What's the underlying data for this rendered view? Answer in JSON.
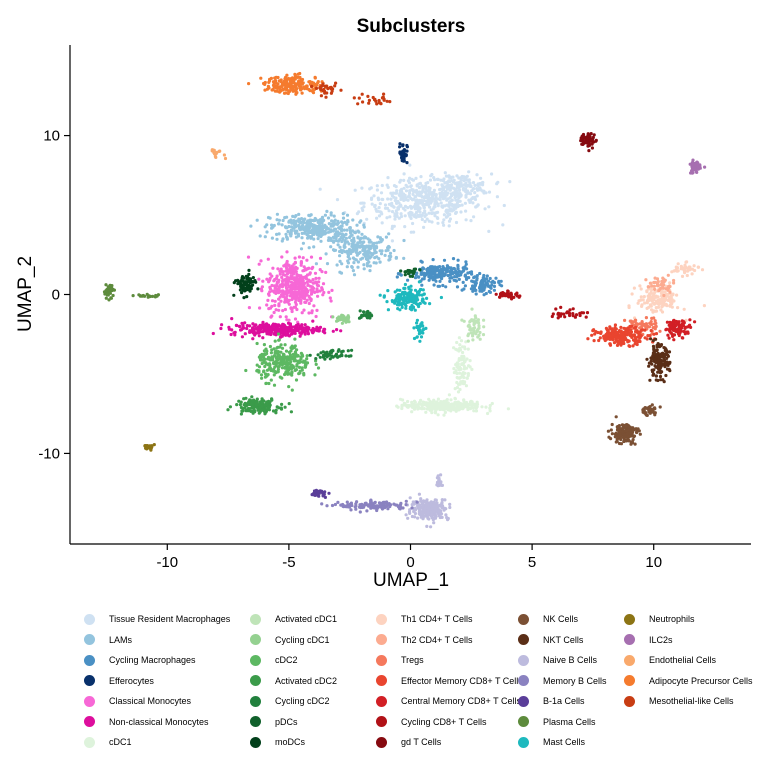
{
  "chart_data": {
    "type": "scatter",
    "title": "Subclusters",
    "xlabel": "UMAP_1",
    "ylabel": "UMAP_2",
    "xlim": [
      -14,
      14
    ],
    "ylim": [
      -15.7,
      15.7
    ],
    "xticks": [
      -10,
      -5,
      0,
      5,
      10
    ],
    "yticks": [
      -10,
      0,
      10
    ],
    "xtick_labels": [
      "-10",
      "-5",
      "0",
      "5",
      "10"
    ],
    "ytick_labels": [
      "-10",
      "0",
      "10"
    ],
    "grid": false,
    "legend_position": "bottom",
    "series": [
      {
        "name": "Tissue Resident Macrophages",
        "color": "#cfe1f2",
        "clusters": [
          {
            "cx": 0.5,
            "cy": 5.8,
            "sx": 2.2,
            "sy": 1.3,
            "n": 450
          },
          {
            "cx": 2.0,
            "cy": 6.8,
            "sx": 1.2,
            "sy": 0.7,
            "n": 150
          }
        ]
      },
      {
        "name": "LAMs",
        "color": "#93c4de",
        "clusters": [
          {
            "cx": -4.0,
            "cy": 4.2,
            "sx": 1.6,
            "sy": 0.8,
            "n": 320
          },
          {
            "cx": -2.0,
            "cy": 2.8,
            "sx": 1.2,
            "sy": 0.9,
            "n": 220
          }
        ]
      },
      {
        "name": "Cycling Macrophages",
        "color": "#4a90c4",
        "clusters": [
          {
            "cx": 1.2,
            "cy": 1.3,
            "sx": 1.2,
            "sy": 0.6,
            "n": 200
          },
          {
            "cx": 3.0,
            "cy": 0.6,
            "sx": 0.6,
            "sy": 0.5,
            "n": 80
          }
        ]
      },
      {
        "name": "Efferocytes",
        "color": "#08306b",
        "clusters": [
          {
            "cx": -0.3,
            "cy": 8.9,
            "sx": 0.15,
            "sy": 0.6,
            "n": 40
          }
        ]
      },
      {
        "name": "Classical Monocytes",
        "color": "#f768d6",
        "clusters": [
          {
            "cx": -4.8,
            "cy": 0.5,
            "sx": 1.0,
            "sy": 1.6,
            "n": 420
          }
        ]
      },
      {
        "name": "Non-classical Monocytes",
        "color": "#dd0e9d",
        "clusters": [
          {
            "cx": -5.5,
            "cy": -2.2,
            "sx": 1.7,
            "sy": 0.35,
            "n": 280
          }
        ]
      },
      {
        "name": "cDC1",
        "color": "#def3dc",
        "clusters": [
          {
            "cx": 1.3,
            "cy": -7.0,
            "sx": 1.5,
            "sy": 0.35,
            "n": 300
          },
          {
            "cx": 2.1,
            "cy": -4.5,
            "sx": 0.3,
            "sy": 1.5,
            "n": 90
          }
        ]
      },
      {
        "name": "Activated cDC1",
        "color": "#bfe4b8",
        "clusters": [
          {
            "cx": 2.6,
            "cy": -2.0,
            "sx": 0.3,
            "sy": 0.8,
            "n": 50
          }
        ]
      },
      {
        "name": "Cycling cDC1",
        "color": "#94d190",
        "clusters": [
          {
            "cx": -2.8,
            "cy": -1.5,
            "sx": 0.3,
            "sy": 0.3,
            "n": 30
          }
        ]
      },
      {
        "name": "cDC2",
        "color": "#5db862",
        "clusters": [
          {
            "cx": -5.2,
            "cy": -4.3,
            "sx": 1.0,
            "sy": 1.0,
            "n": 260
          }
        ]
      },
      {
        "name": "Activated cDC2",
        "color": "#3b9b4a",
        "clusters": [
          {
            "cx": -6.3,
            "cy": -7.0,
            "sx": 0.8,
            "sy": 0.4,
            "n": 160
          }
        ]
      },
      {
        "name": "Cycling cDC2",
        "color": "#21803d",
        "clusters": [
          {
            "cx": -3.2,
            "cy": -3.8,
            "sx": 0.6,
            "sy": 0.25,
            "n": 50
          },
          {
            "cx": -1.8,
            "cy": -1.3,
            "sx": 0.3,
            "sy": 0.25,
            "n": 25
          }
        ]
      },
      {
        "name": "pDCs",
        "color": "#10602b",
        "clusters": [
          {
            "cx": 0.0,
            "cy": 1.4,
            "sx": 0.3,
            "sy": 0.2,
            "n": 20
          }
        ]
      },
      {
        "name": "moDCs",
        "color": "#02401b",
        "clusters": [
          {
            "cx": -6.8,
            "cy": 0.6,
            "sx": 0.35,
            "sy": 0.6,
            "n": 80
          }
        ]
      },
      {
        "name": "Th1 CD4+ T Cells",
        "color": "#fdd3c0",
        "clusters": [
          {
            "cx": 10.2,
            "cy": -0.3,
            "sx": 0.8,
            "sy": 0.8,
            "n": 150
          },
          {
            "cx": 11.3,
            "cy": 1.6,
            "sx": 0.5,
            "sy": 0.3,
            "n": 40
          }
        ]
      },
      {
        "name": "Th2 CD4+ T Cells",
        "color": "#fcab90",
        "clusters": [
          {
            "cx": 10.3,
            "cy": 0.6,
            "sx": 0.5,
            "sy": 0.5,
            "n": 40
          }
        ]
      },
      {
        "name": "Tregs",
        "color": "#f5795d",
        "clusters": [
          {
            "cx": 9.5,
            "cy": -2.0,
            "sx": 0.6,
            "sy": 0.5,
            "n": 60
          }
        ]
      },
      {
        "name": "Effector Memory CD8+ T Cells",
        "color": "#e9452f",
        "clusters": [
          {
            "cx": 8.7,
            "cy": -2.6,
            "sx": 1.0,
            "sy": 0.5,
            "n": 200
          }
        ]
      },
      {
        "name": "Central Memory CD8+ T Cells",
        "color": "#d21f25",
        "clusters": [
          {
            "cx": 11.0,
            "cy": -2.1,
            "sx": 0.5,
            "sy": 0.5,
            "n": 80
          }
        ]
      },
      {
        "name": "Cycling CD8+ T Cells",
        "color": "#b11117",
        "clusters": [
          {
            "cx": 4.0,
            "cy": 0.0,
            "sx": 0.4,
            "sy": 0.2,
            "n": 40
          },
          {
            "cx": 6.5,
            "cy": -1.2,
            "sx": 0.7,
            "sy": 0.3,
            "n": 30
          }
        ]
      },
      {
        "name": "gd T Cells",
        "color": "#860a10",
        "clusters": [
          {
            "cx": 7.3,
            "cy": 9.7,
            "sx": 0.3,
            "sy": 0.4,
            "n": 60
          }
        ]
      },
      {
        "name": "NK Cells",
        "color": "#7b5034",
        "clusters": [
          {
            "cx": 8.8,
            "cy": -8.7,
            "sx": 0.5,
            "sy": 0.6,
            "n": 130
          },
          {
            "cx": 9.8,
            "cy": -7.3,
            "sx": 0.35,
            "sy": 0.3,
            "n": 40
          }
        ]
      },
      {
        "name": "NKT Cells",
        "color": "#5a2e17",
        "clusters": [
          {
            "cx": 10.2,
            "cy": -4.2,
            "sx": 0.4,
            "sy": 0.9,
            "n": 150
          }
        ]
      },
      {
        "name": "Naive B Cells",
        "color": "#bdbbde",
        "clusters": [
          {
            "cx": 0.8,
            "cy": -13.5,
            "sx": 0.7,
            "sy": 0.6,
            "n": 220
          },
          {
            "cx": 1.2,
            "cy": -11.8,
            "sx": 0.2,
            "sy": 0.3,
            "n": 20
          }
        ]
      },
      {
        "name": "Memory B Cells",
        "color": "#8a82c0",
        "clusters": [
          {
            "cx": -1.5,
            "cy": -13.3,
            "sx": 1.3,
            "sy": 0.25,
            "n": 120
          }
        ]
      },
      {
        "name": "B-1a Cells",
        "color": "#5a3e99",
        "clusters": [
          {
            "cx": -3.8,
            "cy": -12.5,
            "sx": 0.3,
            "sy": 0.2,
            "n": 30
          }
        ]
      },
      {
        "name": "Plasma Cells",
        "color": "#5d8b3c",
        "clusters": [
          {
            "cx": -12.4,
            "cy": 0.2,
            "sx": 0.2,
            "sy": 0.4,
            "n": 40
          },
          {
            "cx": -10.8,
            "cy": -0.1,
            "sx": 0.6,
            "sy": 0.08,
            "n": 20
          }
        ]
      },
      {
        "name": "Mast Cells",
        "color": "#1eb9be",
        "clusters": [
          {
            "cx": -0.1,
            "cy": -0.3,
            "sx": 0.7,
            "sy": 0.6,
            "n": 150
          },
          {
            "cx": 0.4,
            "cy": -2.2,
            "sx": 0.2,
            "sy": 0.6,
            "n": 30
          }
        ]
      },
      {
        "name": "Neutrophils",
        "color": "#8c7414",
        "clusters": [
          {
            "cx": -10.8,
            "cy": -9.6,
            "sx": 0.25,
            "sy": 0.2,
            "n": 20
          }
        ]
      },
      {
        "name": "ILC2s",
        "color": "#a66fb0",
        "clusters": [
          {
            "cx": 11.7,
            "cy": 8.0,
            "sx": 0.2,
            "sy": 0.35,
            "n": 50
          }
        ]
      },
      {
        "name": "Endothelial Cells",
        "color": "#f9a96c",
        "clusters": [
          {
            "cx": -8.0,
            "cy": 8.9,
            "sx": 0.3,
            "sy": 0.3,
            "n": 15
          }
        ]
      },
      {
        "name": "Adipocyte Precursor Cells",
        "color": "#f57b2e",
        "clusters": [
          {
            "cx": -4.8,
            "cy": 13.2,
            "sx": 1.1,
            "sy": 0.5,
            "n": 200
          }
        ]
      },
      {
        "name": "Mesothelial-like Cells",
        "color": "#c83d13",
        "clusters": [
          {
            "cx": -3.4,
            "cy": 12.9,
            "sx": 0.4,
            "sy": 0.3,
            "n": 30
          },
          {
            "cx": -1.5,
            "cy": 12.2,
            "sx": 0.8,
            "sy": 0.3,
            "n": 25
          }
        ]
      }
    ]
  }
}
